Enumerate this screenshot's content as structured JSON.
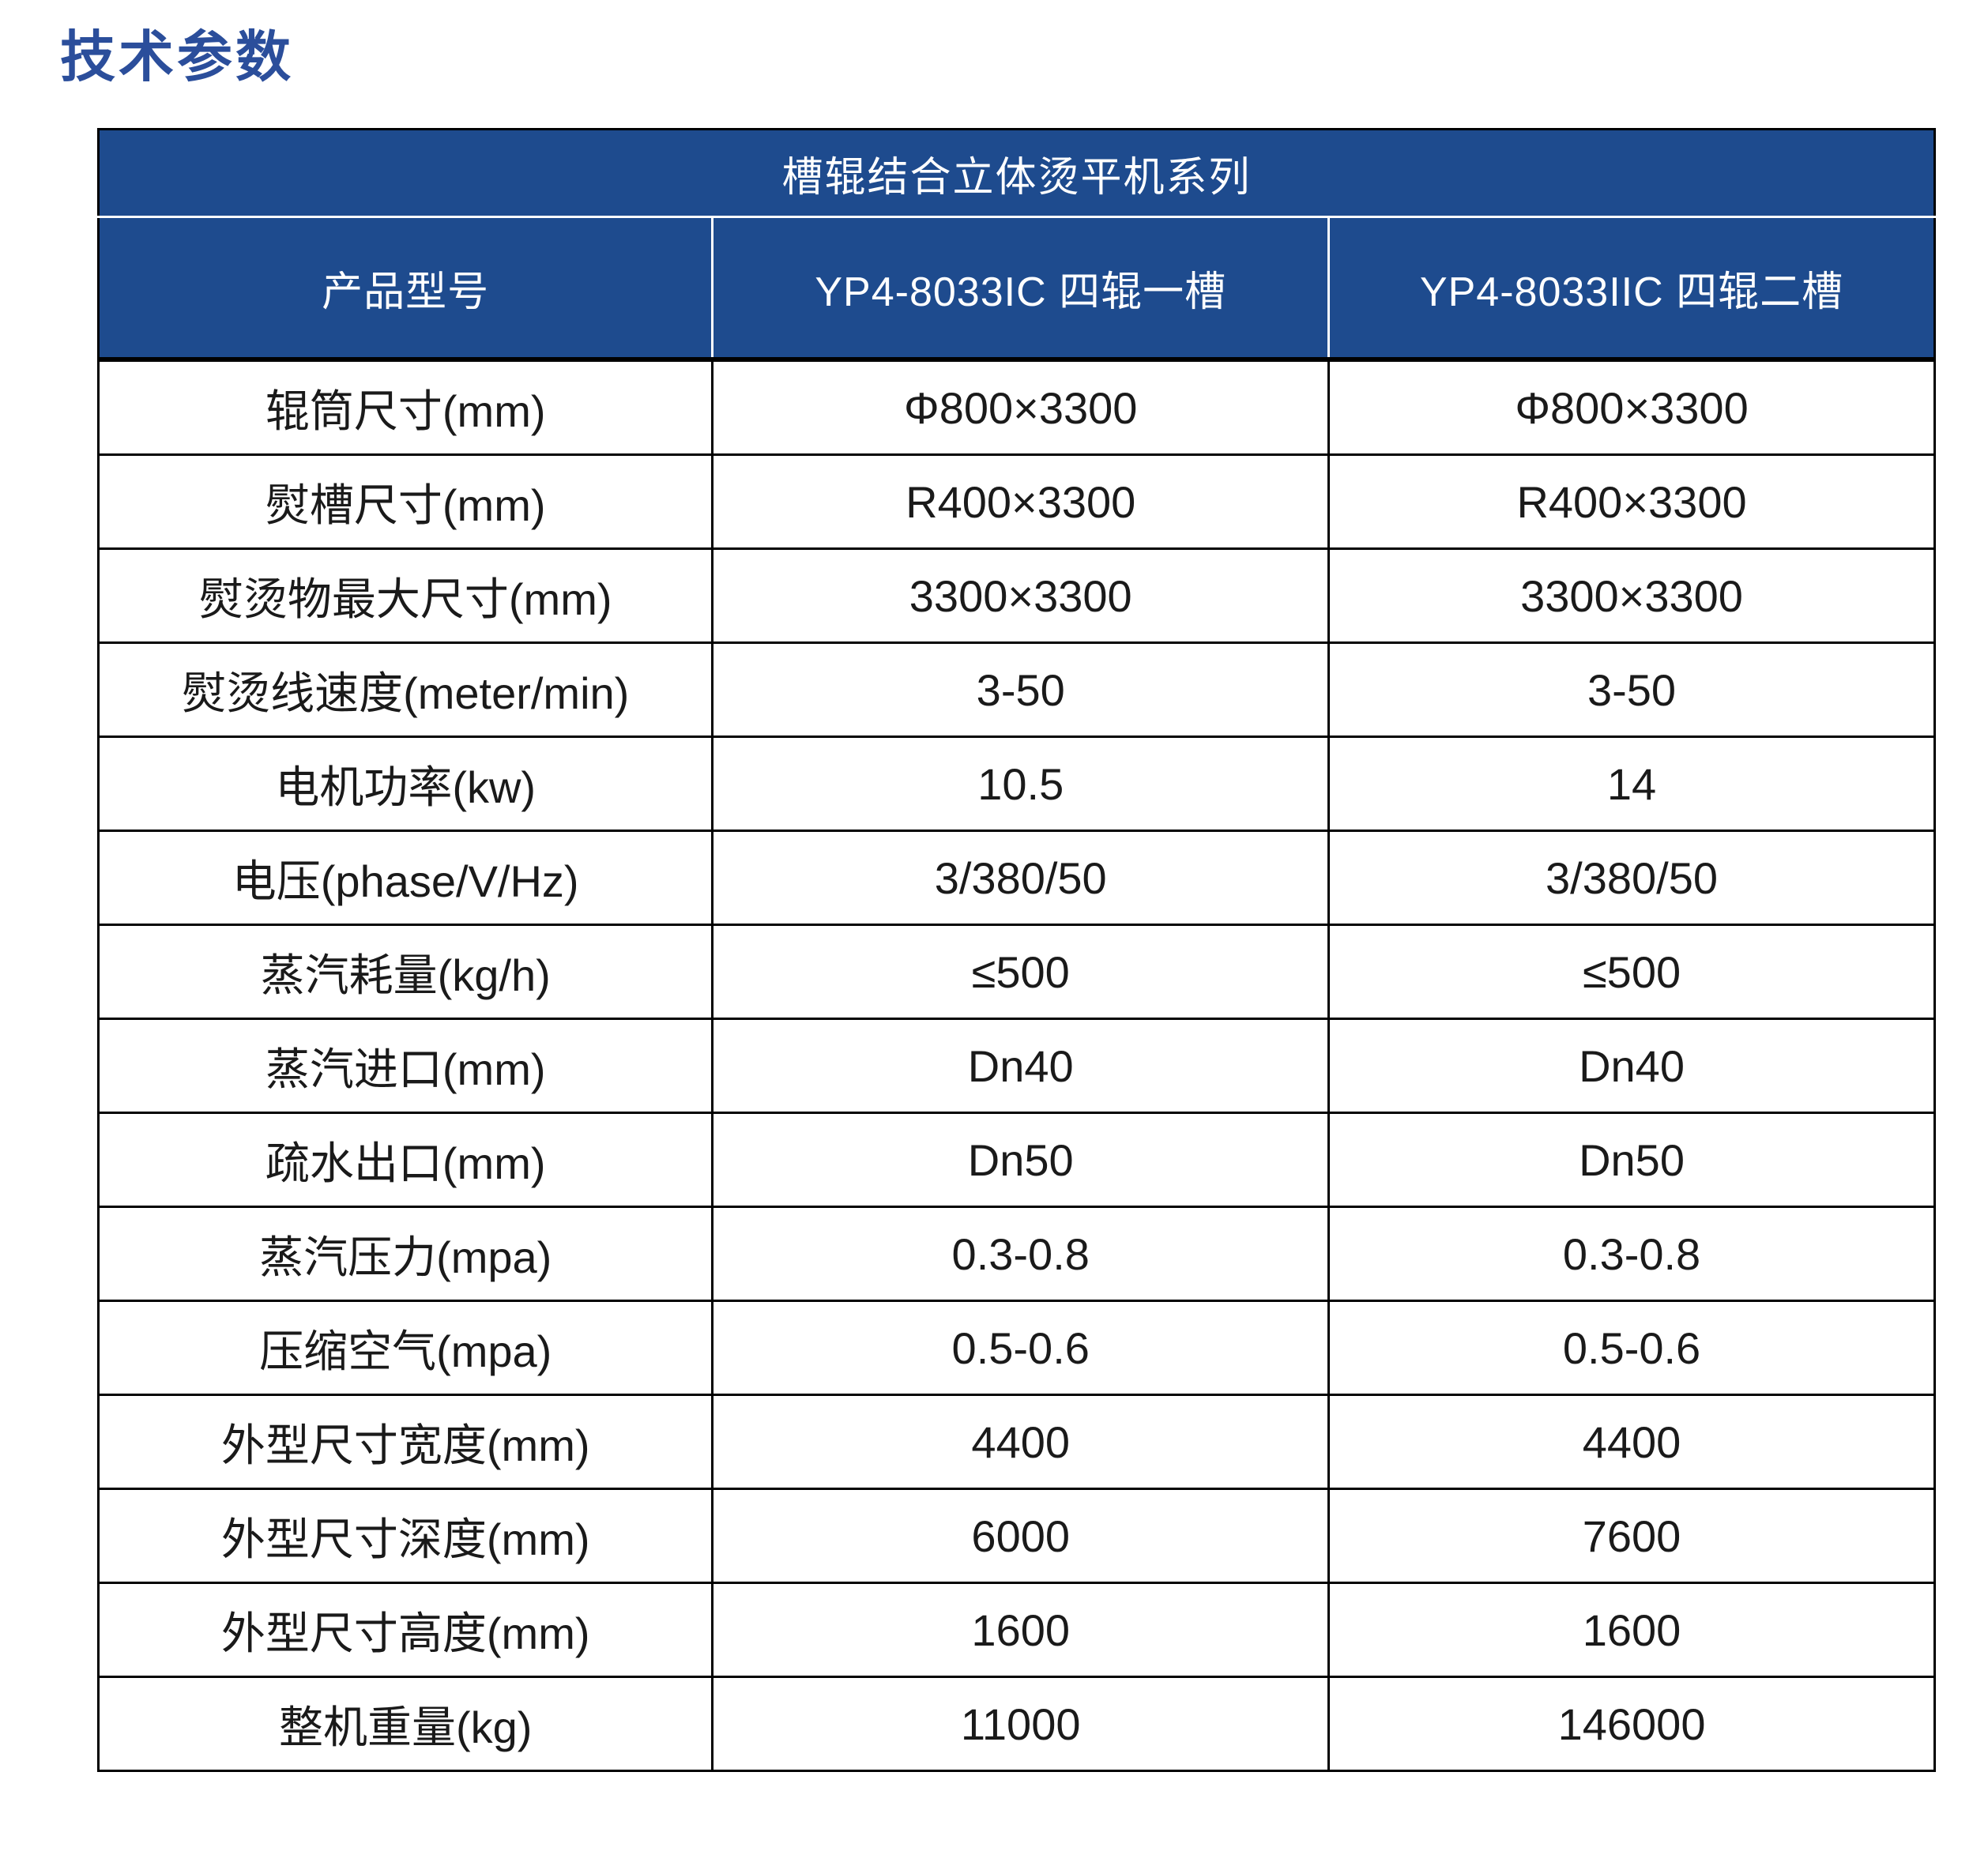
{
  "title": "技术参数",
  "table": {
    "series_title": "槽辊结合立体烫平机系列",
    "header": {
      "col1": "产品型号",
      "col2": "YP4-8033IC 四辊一槽",
      "col3": "YP4-8033IIC 四辊二槽"
    },
    "rows": [
      {
        "label": "辊筒尺寸(mm)",
        "yp4_8033ic": "Φ800×3300",
        "yp4_8033iic": "Φ800×3300"
      },
      {
        "label": "熨槽尺寸(mm)",
        "yp4_8033ic": "R400×3300",
        "yp4_8033iic": "R400×3300"
      },
      {
        "label": "熨烫物最大尺寸(mm)",
        "yp4_8033ic": "3300×3300",
        "yp4_8033iic": "3300×3300"
      },
      {
        "label": "熨烫线速度(meter/min)",
        "yp4_8033ic": "3-50",
        "yp4_8033iic": "3-50"
      },
      {
        "label": "电机功率(kw)",
        "yp4_8033ic": "10.5",
        "yp4_8033iic": "14"
      },
      {
        "label": "电压(phase/V/Hz)",
        "yp4_8033ic": "3/380/50",
        "yp4_8033iic": "3/380/50"
      },
      {
        "label": "蒸汽耗量(kg/h)",
        "yp4_8033ic": "≤500",
        "yp4_8033iic": "≤500"
      },
      {
        "label": "蒸汽进口(mm)",
        "yp4_8033ic": "Dn40",
        "yp4_8033iic": "Dn40"
      },
      {
        "label": "疏水出口(mm)",
        "yp4_8033ic": "Dn50",
        "yp4_8033iic": "Dn50"
      },
      {
        "label": "蒸汽压力(mpa)",
        "yp4_8033ic": "0.3-0.8",
        "yp4_8033iic": "0.3-0.8"
      },
      {
        "label": "压缩空气(mpa)",
        "yp4_8033ic": "0.5-0.6",
        "yp4_8033iic": "0.5-0.6"
      },
      {
        "label": "外型尺寸宽度(mm)",
        "yp4_8033ic": "4400",
        "yp4_8033iic": "4400"
      },
      {
        "label": "外型尺寸深度(mm)",
        "yp4_8033ic": "6000",
        "yp4_8033iic": "7600"
      },
      {
        "label": "外型尺寸高度(mm)",
        "yp4_8033ic": "1600",
        "yp4_8033iic": "1600"
      },
      {
        "label": "整机重量(kg)",
        "yp4_8033ic": "11000",
        "yp4_8033iic": "146000"
      }
    ]
  },
  "colors": {
    "title_text": "#2b4e9b",
    "header_bg": "#1e4b8e",
    "header_text": "#ffffff",
    "body_text": "#1a1a1a",
    "grid_line": "#000000"
  }
}
